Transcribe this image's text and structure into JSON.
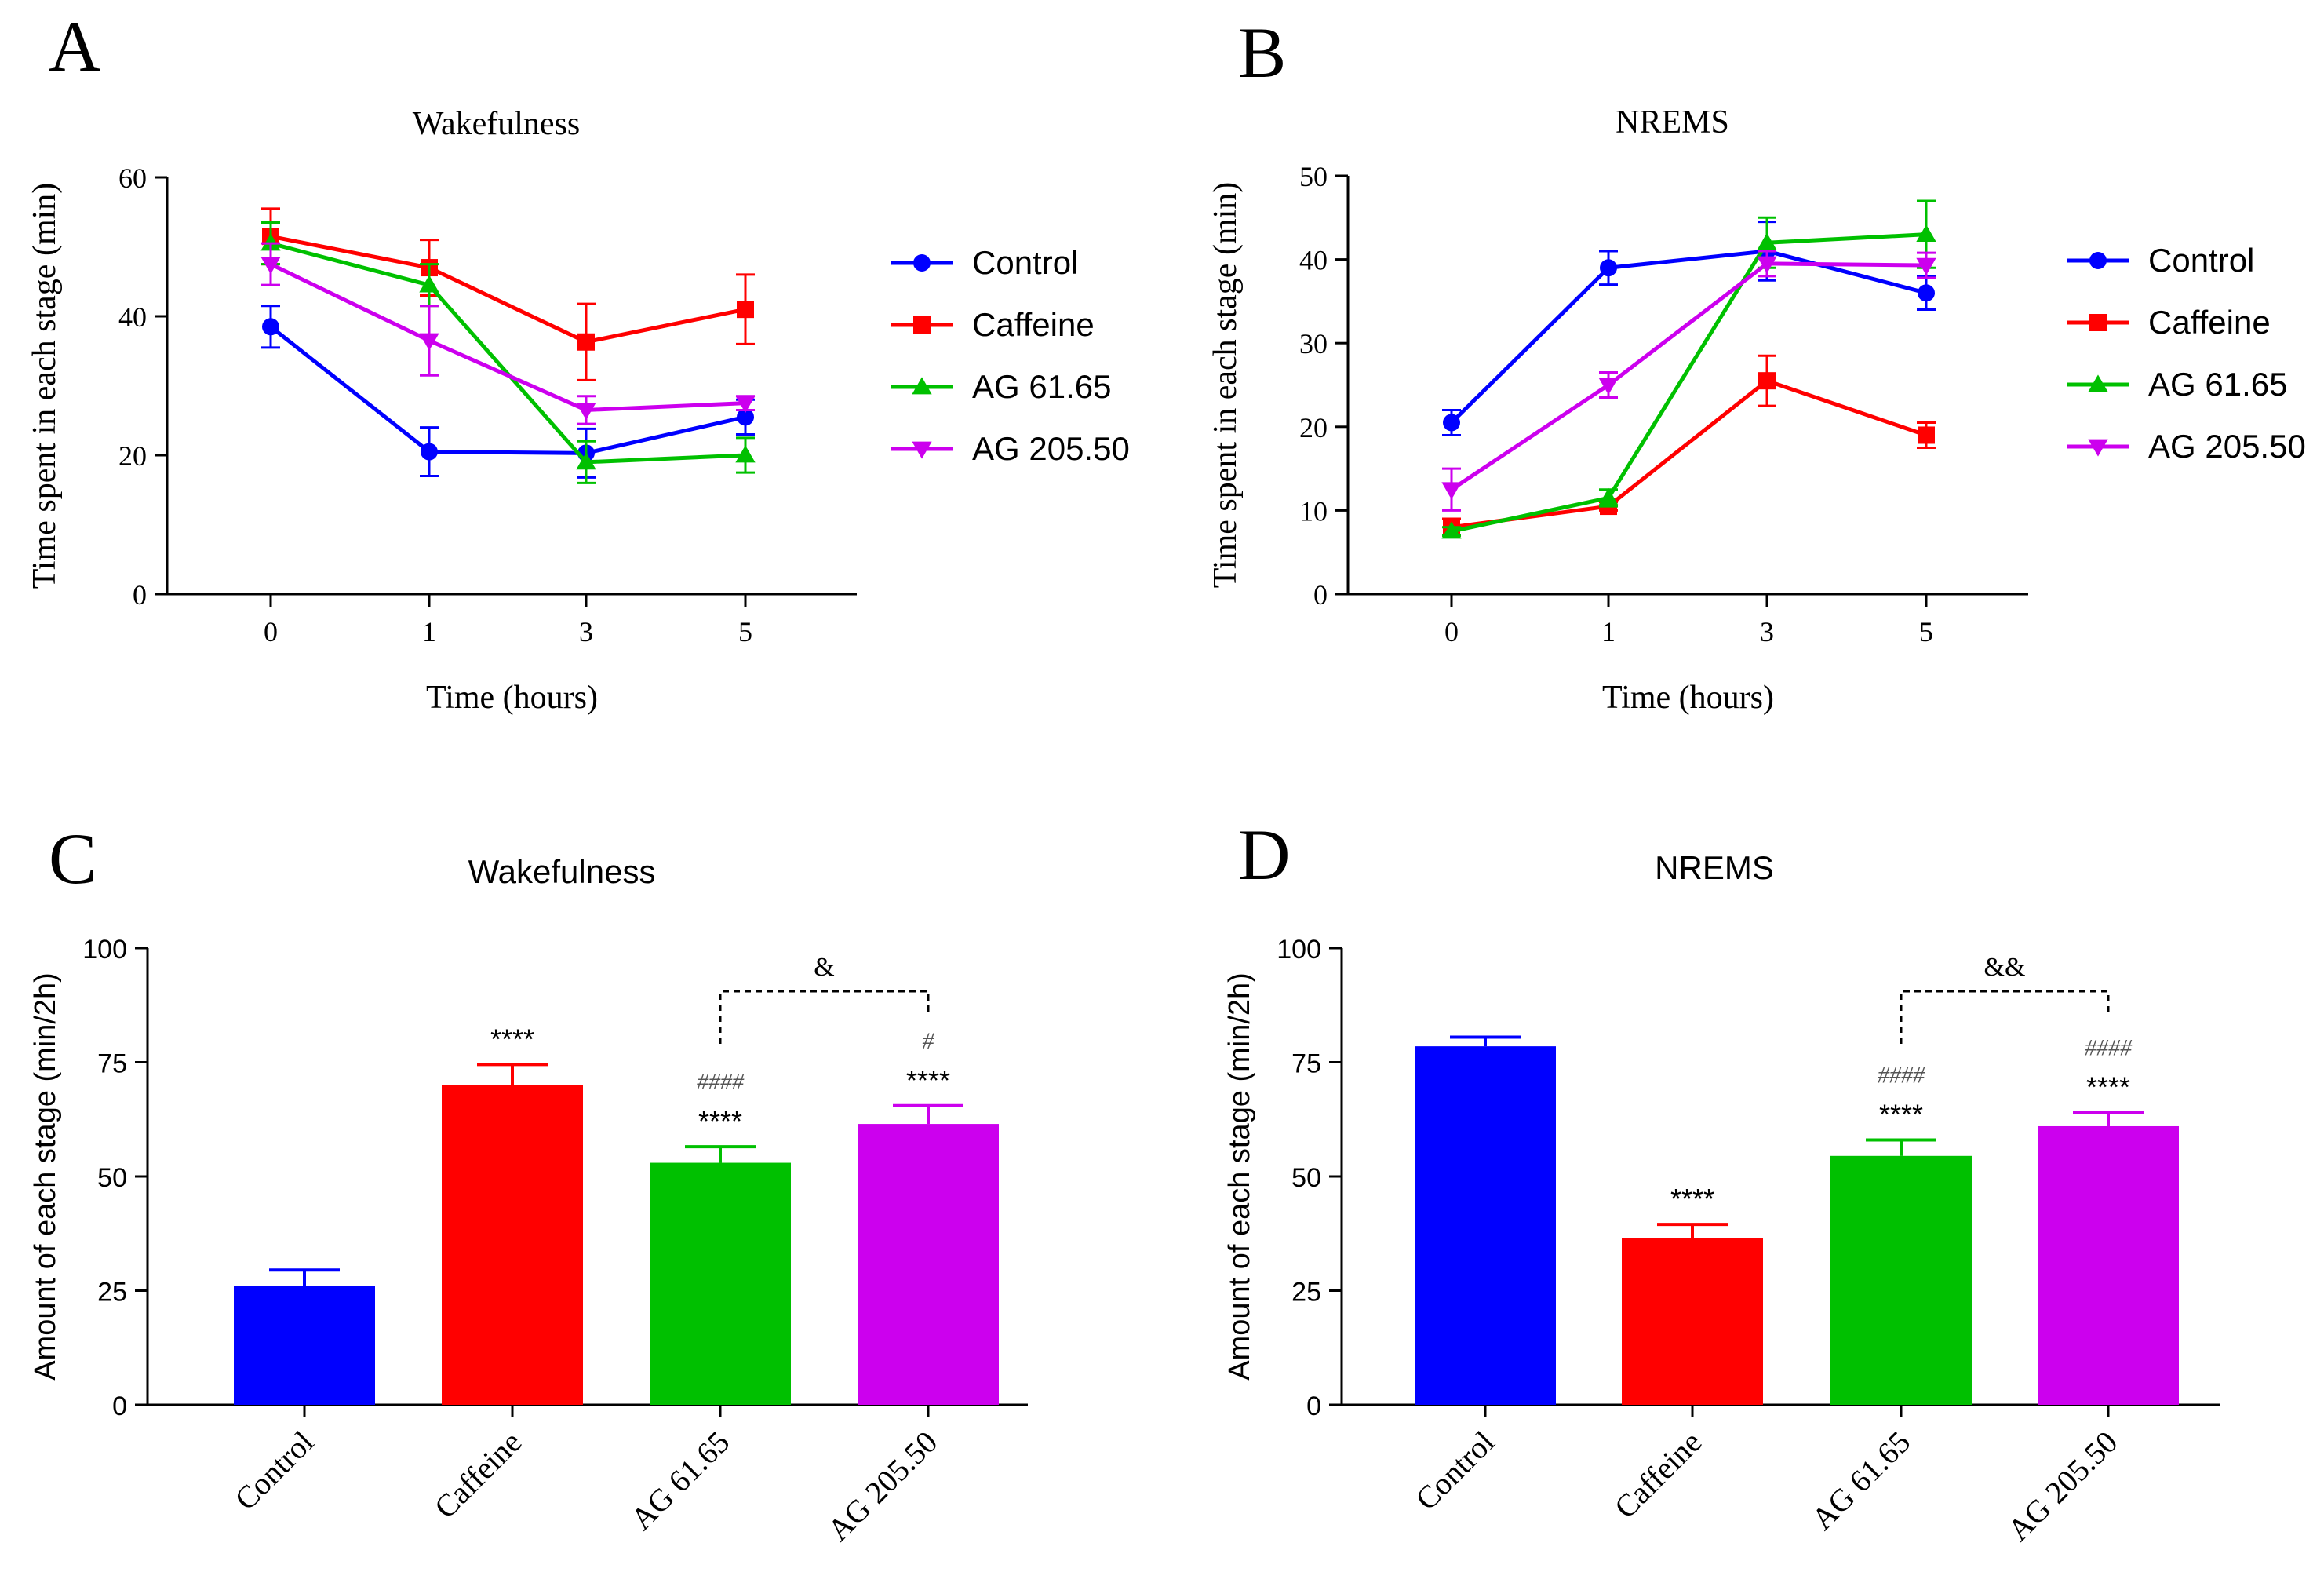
{
  "colors": {
    "Control": "#0000ff",
    "Caffeine": "#ff0000",
    "AG 61.65": "#00c000",
    "AG 205.50": "#cc00ee",
    "axis": "#000000",
    "annotation": "#555555"
  },
  "chart_data": [
    {
      "panel": "A",
      "type": "line",
      "title": "Wakefulness",
      "xlabel": "Time (hours)",
      "ylabel": "Time spent in each stage (min)",
      "categories": [
        "0",
        "1",
        "3",
        "5"
      ],
      "ylim": [
        0,
        60
      ],
      "yticks": [
        0,
        20,
        40,
        60
      ],
      "legend_position": "right",
      "series": [
        {
          "name": "Control",
          "marker": "circle",
          "values": [
            38.5,
            20.5,
            20.3,
            25.5
          ],
          "errors": [
            3,
            3.5,
            3.5,
            2.5
          ]
        },
        {
          "name": "Caffeine",
          "marker": "square",
          "values": [
            51.5,
            47,
            36.3,
            41
          ],
          "errors": [
            4,
            4,
            5.5,
            5
          ]
        },
        {
          "name": "AG 61.65",
          "marker": "triangle-up",
          "values": [
            50.5,
            44.5,
            19,
            20
          ],
          "errors": [
            3,
            3,
            3,
            2.5
          ]
        },
        {
          "name": "AG 205.50",
          "marker": "triangle-down",
          "values": [
            47.5,
            36.5,
            26.5,
            27.5
          ],
          "errors": [
            3,
            5,
            2,
            1
          ]
        }
      ]
    },
    {
      "panel": "B",
      "type": "line",
      "title": "NREMS",
      "xlabel": "Time (hours)",
      "ylabel": "Time spent in each stage (min)",
      "categories": [
        "0",
        "1",
        "3",
        "5"
      ],
      "ylim": [
        0,
        50
      ],
      "yticks": [
        0,
        10,
        20,
        30,
        40,
        50
      ],
      "legend_position": "right",
      "series": [
        {
          "name": "Control",
          "marker": "circle",
          "values": [
            20.5,
            39,
            41,
            36
          ],
          "errors": [
            1.5,
            2,
            3.5,
            2
          ]
        },
        {
          "name": "Caffeine",
          "marker": "square",
          "values": [
            8,
            10.5,
            25.5,
            19
          ],
          "errors": [
            1,
            0.5,
            3,
            1.5
          ]
        },
        {
          "name": "AG 61.65",
          "marker": "triangle-up",
          "values": [
            7.5,
            11.5,
            42,
            43
          ],
          "errors": [
            0.5,
            1,
            3,
            4
          ]
        },
        {
          "name": "AG 205.50",
          "marker": "triangle-down",
          "values": [
            12.5,
            25,
            39.5,
            39.3
          ],
          "errors": [
            2.5,
            1.5,
            1.5,
            1.5
          ]
        }
      ]
    },
    {
      "panel": "C",
      "type": "bar",
      "title": "Wakefulness",
      "ylabel": "Amount of each stage (min/2h)",
      "categories": [
        "Control",
        "Caffeine",
        "AG 61.65",
        "AG 205.50"
      ],
      "values": [
        26,
        70,
        53,
        61.5
      ],
      "errors": [
        3.5,
        4.5,
        3.5,
        4
      ],
      "ylim": [
        0,
        100
      ],
      "yticks": [
        0,
        25,
        50,
        75,
        100
      ],
      "stars": [
        "",
        "****",
        "****",
        "****"
      ],
      "hashes": [
        "",
        "",
        "####",
        "#"
      ],
      "bracket": {
        "from": "AG 61.65",
        "to": "AG 205.50",
        "label": "&"
      }
    },
    {
      "panel": "D",
      "type": "bar",
      "title": "NREMS",
      "ylabel": "Amount of each stage (min/2h)",
      "categories": [
        "Control",
        "Caffeine",
        "AG 61.65",
        "AG 205.50"
      ],
      "values": [
        78.5,
        36.5,
        54.5,
        61
      ],
      "errors": [
        2,
        3,
        3.5,
        3
      ],
      "ylim": [
        0,
        100
      ],
      "yticks": [
        0,
        25,
        50,
        75,
        100
      ],
      "stars": [
        "",
        "****",
        "****",
        "****"
      ],
      "hashes": [
        "",
        "",
        "####",
        "####"
      ],
      "bracket": {
        "from": "AG 61.65",
        "to": "AG 205.50",
        "label": "&&"
      }
    }
  ]
}
